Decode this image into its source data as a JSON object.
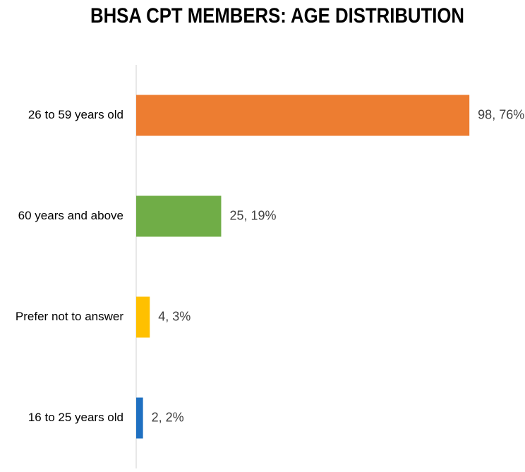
{
  "chart_data": {
    "type": "hbar",
    "title": "BHSA CPT MEMBERS: AGE DISTRIBUTION",
    "categories": [
      "26 to 59 years old",
      "60 years and above",
      "Prefer not to answer",
      "16 to 25 years old"
    ],
    "values": [
      98,
      25,
      4,
      2
    ],
    "value_labels": [
      "98, 76%",
      "25, 19%",
      "4, 3%",
      "2, 2%"
    ],
    "colors": [
      "#ed7d31",
      "#70ad47",
      "#ffc000",
      "#1f70c1"
    ],
    "xlim": [
      0,
      110
    ]
  }
}
